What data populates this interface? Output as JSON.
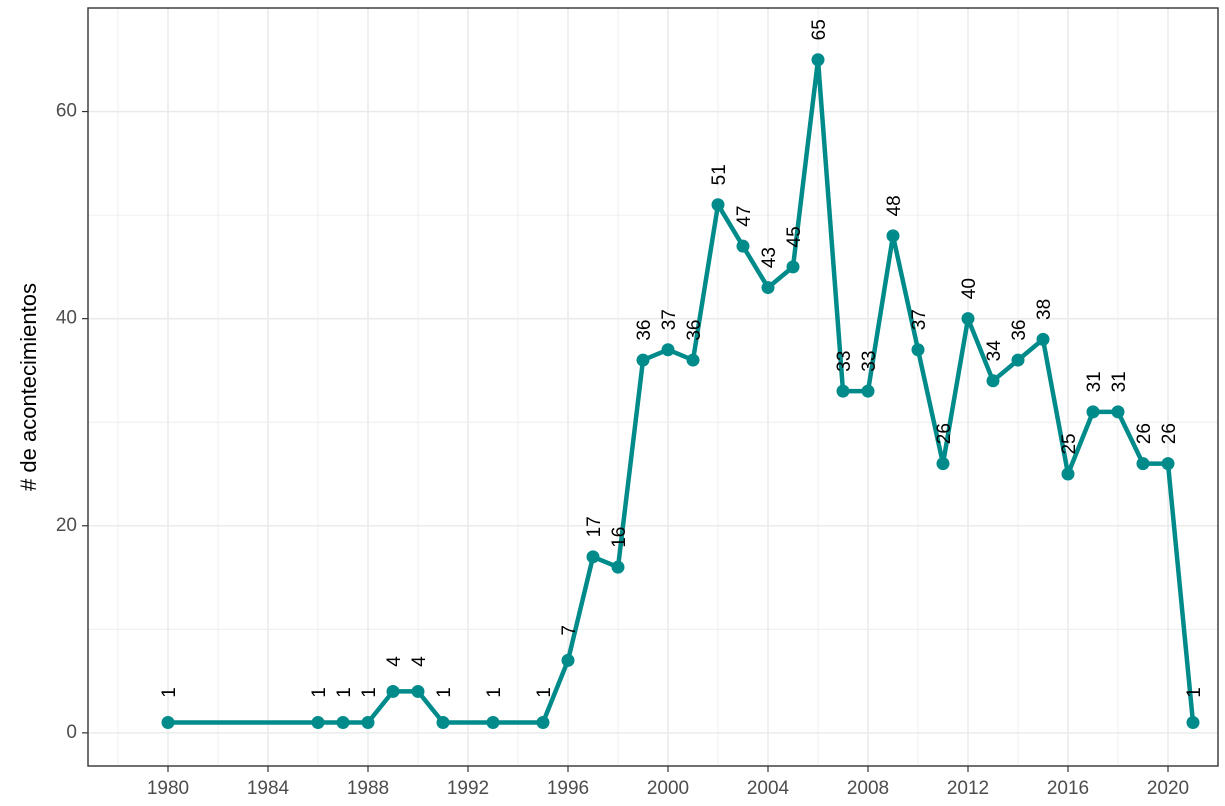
{
  "chart_data": {
    "type": "line",
    "title": "",
    "xlabel": "",
    "ylabel": "# de acontecimientos",
    "xlim": [
      1976.8,
      1982.0
    ],
    "ylim": [
      -3.2,
      70
    ],
    "x_ticks": [
      1980,
      1984,
      1988,
      1992,
      1996,
      2000,
      2004,
      2008,
      2012,
      2016,
      2020
    ],
    "y_ticks": [
      0,
      20,
      40,
      60
    ],
    "grid": true,
    "color": "#008b8b",
    "series": [
      {
        "x": [
          1980,
          1986,
          1987,
          1988,
          1989,
          1990,
          1991,
          1993,
          1995,
          1996,
          1997,
          1998,
          1999,
          2000,
          2001,
          2002,
          2003,
          2004,
          2005,
          2006,
          2007,
          2008,
          2009,
          2010,
          2011,
          2012,
          2013,
          2014,
          2015,
          2016,
          2017,
          2018,
          2019,
          2020,
          2021
        ],
        "values": [
          1,
          1,
          1,
          1,
          4,
          4,
          1,
          1,
          1,
          7,
          17,
          16,
          36,
          37,
          36,
          51,
          47,
          43,
          45,
          65,
          33,
          33,
          48,
          37,
          26,
          40,
          34,
          36,
          38,
          25,
          31,
          31,
          26,
          26,
          1
        ]
      }
    ]
  }
}
